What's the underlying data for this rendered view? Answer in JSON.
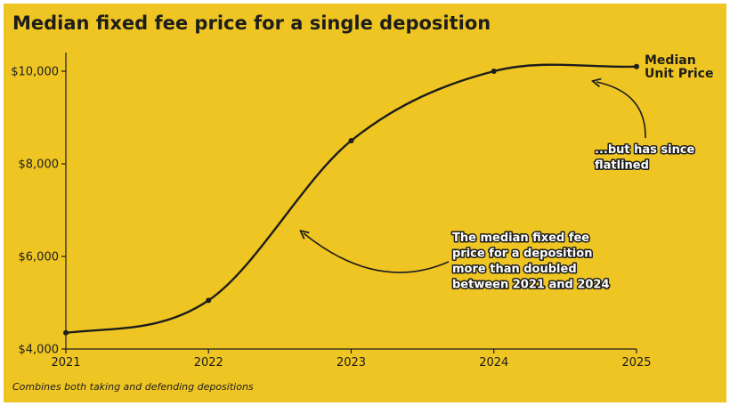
{
  "colors": {
    "background": "#efc523",
    "ink": "#1d1d1b",
    "annotation_fill": "#ffffff"
  },
  "chart_data": {
    "type": "line",
    "title": "Median fixed fee price for a single deposition",
    "footnote": "Combines both taking and defending depositions",
    "x": [
      "2021",
      "2022",
      "2023",
      "2024",
      "2025"
    ],
    "series": [
      {
        "name": "Median Unit Price",
        "name_lines": [
          "Median",
          "Unit Price"
        ],
        "values": [
          4350,
          5050,
          8500,
          10000,
          10100
        ]
      }
    ],
    "ylim": [
      4000,
      10500
    ],
    "yticks": [
      {
        "value": 4000,
        "label": "$4,000"
      },
      {
        "value": 6000,
        "label": "$6,000"
      },
      {
        "value": 8000,
        "label": "$8,000"
      },
      {
        "value": 10000,
        "label": "$10,000"
      }
    ],
    "grid": false,
    "annotations": [
      {
        "id": "doubled",
        "lines": [
          "The median fixed fee",
          "price for a deposition",
          "more than doubled",
          "between 2021 and 2024"
        ]
      },
      {
        "id": "flatlined",
        "lines": [
          "...but has since",
          "flatlined"
        ]
      }
    ]
  }
}
